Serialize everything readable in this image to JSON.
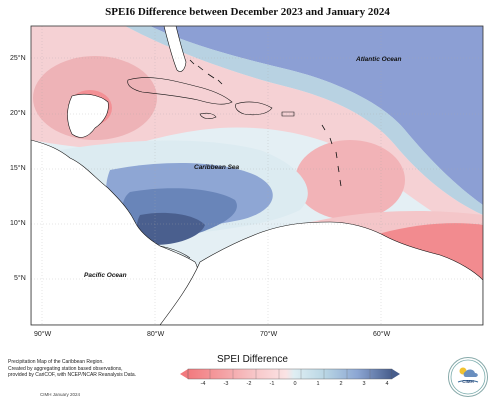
{
  "title": "SPEI6 Difference between December 2023 and January 2024",
  "map_labels": {
    "atlantic": "Atlantic Ocean",
    "caribbean": "Caribbean Sea",
    "pacific": "Pacific Ocean"
  },
  "lat_labels": [
    "25°N",
    "20°N",
    "15°N",
    "10°N",
    "5°N"
  ],
  "lon_labels": [
    "90°W",
    "80°W",
    "70°W",
    "60°W"
  ],
  "credit": {
    "line1": "Precipitation Map of the Caribbean Region.",
    "line2": "Created by aggregating station based observations,",
    "line3": "provided by CariCOF, with NCEP/NCAR Reanalysis Data.",
    "date": "CIMH January 2024"
  },
  "legend": {
    "title": "SPEI Difference",
    "ticks": [
      "-4",
      "-3",
      "-2",
      "-1",
      "0",
      "1",
      "2",
      "3",
      "4"
    ],
    "colors": [
      "#f27a7e",
      "#f4a0a3",
      "#f7c7c9",
      "#fbe3e4",
      "#dfeef3",
      "#b9d6e4",
      "#8ca6d3",
      "#6b87b9",
      "#475d8c"
    ]
  },
  "logo": {
    "text": "CIMH"
  }
}
